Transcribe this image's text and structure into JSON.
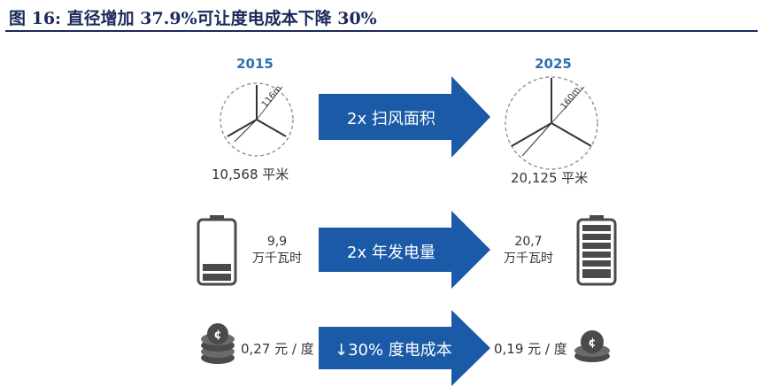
{
  "header": {
    "title": "图 16:  直径增加 37.9%可让度电成本下降 30%"
  },
  "rotor": {
    "left": {
      "year": "2015",
      "radius_label": "116m",
      "area_label": "10,568 平米"
    },
    "right": {
      "year": "2025",
      "radius_label": "160m",
      "area_label": "20,125 平米"
    },
    "arrow_label": "2x  扫风面积"
  },
  "energy": {
    "left": {
      "value": "9,9",
      "unit": "万千瓦时",
      "battery_level": 0.2
    },
    "right": {
      "value": "20,7",
      "unit": "万千瓦时",
      "battery_level": 1.0
    },
    "arrow_label": "2x  年发电量"
  },
  "cost": {
    "left": {
      "label": "0,27 元 / 度"
    },
    "right": {
      "label": "0,19 元 / 度"
    },
    "arrow_label": "↓30%  度电成本"
  },
  "colors": {
    "arrow": "#1a5aa6",
    "accent": "#2e6fb3",
    "header": "#1b2a5a",
    "battery": "#4a4a4a"
  }
}
